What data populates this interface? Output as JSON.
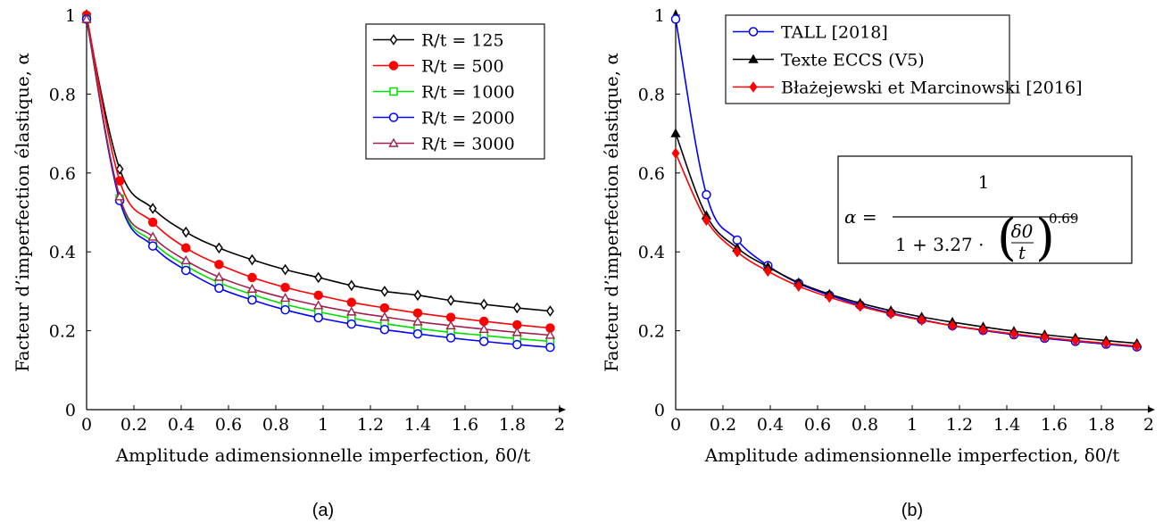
{
  "captions": [
    "(a)",
    "(b)"
  ],
  "formula": {
    "lhs": "α =",
    "numerator": "1",
    "denominator_prefix": "1 + 3.27 ·",
    "fraction_top": "δ0",
    "fraction_bottom": "t",
    "exponent": "0.69"
  },
  "chart_data": [
    {
      "type": "line",
      "caption": "(a)",
      "xlabel": "Amplitude adimensionnelle imperfection, δ0/t",
      "ylabel": "Facteur d’imperfection élastique, α",
      "xlim": [
        0,
        2
      ],
      "ylim": [
        0,
        1
      ],
      "xticks": [
        "0",
        "0.2",
        "0.4",
        "0.6",
        "0.8",
        "1",
        "1.2",
        "1.4",
        "1.6",
        "1.8",
        "2"
      ],
      "yticks": [
        "0",
        "0.2",
        "0.4",
        "0.6",
        "0.8",
        "1"
      ],
      "legend_position": "top-right",
      "x": [
        0,
        0.14,
        0.28,
        0.42,
        0.56,
        0.7,
        0.84,
        0.98,
        1.12,
        1.26,
        1.4,
        1.54,
        1.68,
        1.82,
        1.96
      ],
      "series": [
        {
          "name": "R/t = 125",
          "color": "#000000",
          "marker": "diamond",
          "values": [
            0.99,
            0.61,
            0.51,
            0.45,
            0.41,
            0.38,
            0.355,
            0.335,
            0.315,
            0.3,
            0.29,
            0.277,
            0.267,
            0.258,
            0.25
          ]
        },
        {
          "name": "R/t = 500",
          "color": "#ff0000",
          "marker": "circle-filled",
          "values": [
            1.0,
            0.58,
            0.475,
            0.41,
            0.368,
            0.335,
            0.31,
            0.29,
            0.272,
            0.258,
            0.245,
            0.234,
            0.224,
            0.215,
            0.207
          ]
        },
        {
          "name": "R/t = 1000",
          "color": "#00dd00",
          "marker": "square",
          "values": [
            0.99,
            0.535,
            0.425,
            0.365,
            0.322,
            0.292,
            0.267,
            0.248,
            0.232,
            0.218,
            0.206,
            0.196,
            0.188,
            0.18,
            0.173
          ]
        },
        {
          "name": "R/t = 2000",
          "color": "#0000ff",
          "marker": "circle",
          "values": [
            0.99,
            0.53,
            0.415,
            0.353,
            0.308,
            0.278,
            0.253,
            0.233,
            0.217,
            0.203,
            0.192,
            0.182,
            0.173,
            0.165,
            0.158
          ]
        },
        {
          "name": "R/t = 3000",
          "color": "#a0204a",
          "marker": "triangle",
          "values": [
            0.99,
            0.54,
            0.438,
            0.378,
            0.336,
            0.306,
            0.283,
            0.264,
            0.248,
            0.235,
            0.223,
            0.213,
            0.204,
            0.196,
            0.189
          ]
        }
      ]
    },
    {
      "type": "line",
      "caption": "(b)",
      "xlabel": "Amplitude adimensionnelle imperfection, δ0/t",
      "ylabel": "Facteur d’imperfection élastique, α",
      "xlim": [
        0,
        2
      ],
      "ylim": [
        0,
        1
      ],
      "xticks": [
        "0",
        "0.2",
        "0.4",
        "0.6",
        "0.8",
        "1",
        "1.2",
        "1.4",
        "1.6",
        "1.8",
        "2"
      ],
      "yticks": [
        "0",
        "0.2",
        "0.4",
        "0.6",
        "0.8",
        "1"
      ],
      "legend_position": "top-right",
      "x": [
        0,
        0.13,
        0.26,
        0.39,
        0.52,
        0.65,
        0.78,
        0.91,
        1.04,
        1.17,
        1.3,
        1.43,
        1.56,
        1.69,
        1.82,
        1.95
      ],
      "series": [
        {
          "name": "TALL [2018]",
          "color": "#0000ff",
          "marker": "circle",
          "values": [
            0.99,
            0.545,
            0.43,
            0.365,
            0.32,
            0.29,
            0.265,
            0.245,
            0.228,
            0.213,
            0.201,
            0.19,
            0.181,
            0.173,
            0.166,
            0.159
          ]
        },
        {
          "name": "Texte ECCS (V5)",
          "color": "#000000",
          "marker": "triangle-filled",
          "values": [
            0.7,
            0.492,
            0.41,
            0.362,
            0.322,
            0.293,
            0.27,
            0.251,
            0.235,
            0.222,
            0.21,
            0.199,
            0.19,
            0.182,
            0.175,
            0.168
          ]
        },
        {
          "name": "Błażejewski et Marcinowski [2016]",
          "color": "#ff0000",
          "marker": "diamond-filled",
          "values": [
            0.65,
            0.48,
            0.4,
            0.351,
            0.313,
            0.285,
            0.262,
            0.243,
            0.227,
            0.213,
            0.202,
            0.192,
            0.183,
            0.175,
            0.168,
            0.161
          ]
        }
      ]
    }
  ]
}
